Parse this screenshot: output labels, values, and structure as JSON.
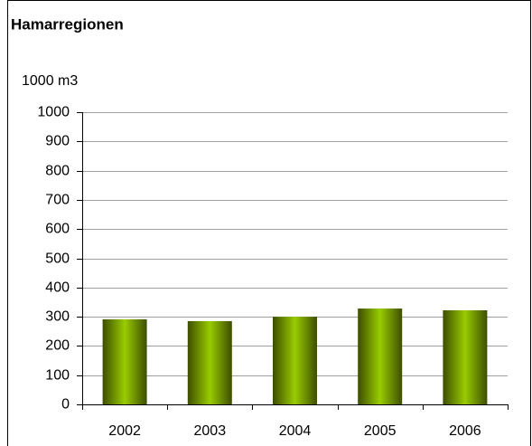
{
  "chart_data": {
    "type": "bar",
    "title": "Hamarregionen",
    "y_label": "1000 m3",
    "categories": [
      "2002",
      "2003",
      "2004",
      "2005",
      "2006"
    ],
    "values": [
      291,
      285,
      300,
      328,
      322
    ],
    "color": "#99cc00",
    "ylim": [
      0,
      1000
    ],
    "yticks": [
      0,
      100,
      200,
      300,
      400,
      500,
      600,
      700,
      800,
      900,
      1000
    ],
    "grid": true
  }
}
